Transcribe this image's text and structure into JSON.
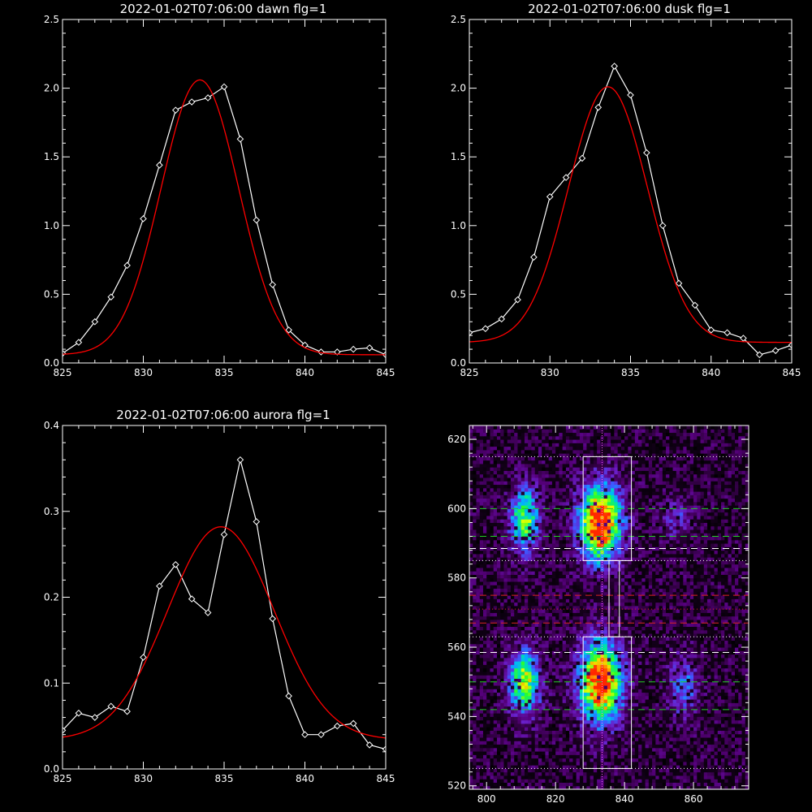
{
  "chart_data": [
    {
      "type": "line",
      "title": "2022-01-02T07:06:00 dawn flg=1",
      "xlim": [
        825,
        845
      ],
      "ylim": [
        0,
        2.5
      ],
      "xticks": [
        "825",
        "830",
        "835",
        "840",
        "845"
      ],
      "yticks": [
        "0.0",
        "0.5",
        "1.0",
        "1.5",
        "2.0",
        "2.5"
      ],
      "series": [
        {
          "color": "#ffffff",
          "marker": "diamond",
          "x": [
            825,
            826,
            827,
            828,
            829,
            830,
            831,
            832,
            833,
            834,
            835,
            836,
            837,
            838,
            839,
            840,
            841,
            842,
            843,
            844,
            845
          ],
          "y": [
            0.07,
            0.15,
            0.3,
            0.48,
            0.71,
            1.05,
            1.44,
            1.84,
            1.9,
            1.93,
            2.01,
            1.63,
            1.04,
            0.57,
            0.24,
            0.13,
            0.08,
            0.08,
            0.1,
            0.11,
            0.06
          ]
        },
        {
          "color": "#ff0000",
          "marker": "none",
          "fit": {
            "amplitude": 2.0,
            "center": 833.5,
            "sigma": 2.4,
            "offset": 0.06
          }
        }
      ]
    },
    {
      "type": "line",
      "title": "2022-01-02T07:06:00 dusk flg=1",
      "xlim": [
        825,
        845
      ],
      "ylim": [
        0,
        2.5
      ],
      "xticks": [
        "825",
        "830",
        "835",
        "840",
        "845"
      ],
      "yticks": [
        "0.0",
        "0.5",
        "1.0",
        "1.5",
        "2.0",
        "2.5"
      ],
      "series": [
        {
          "color": "#ffffff",
          "marker": "diamond",
          "x": [
            825,
            826,
            827,
            828,
            829,
            830,
            831,
            832,
            833,
            834,
            835,
            836,
            837,
            838,
            839,
            840,
            841,
            842,
            843,
            844,
            845
          ],
          "y": [
            0.22,
            0.25,
            0.32,
            0.46,
            0.77,
            1.21,
            1.35,
            1.49,
            1.86,
            2.16,
            1.95,
            1.53,
            1.0,
            0.58,
            0.42,
            0.24,
            0.22,
            0.18,
            0.06,
            0.09,
            0.13
          ]
        },
        {
          "color": "#ff0000",
          "marker": "none",
          "fit": {
            "amplitude": 1.86,
            "center": 833.6,
            "sigma": 2.45,
            "offset": 0.15
          }
        }
      ]
    },
    {
      "type": "line",
      "title": "2022-01-02T07:06:00 aurora flg=1",
      "xlim": [
        825,
        845
      ],
      "ylim": [
        0,
        0.4
      ],
      "xticks": [
        "825",
        "830",
        "835",
        "840",
        "845"
      ],
      "yticks": [
        "0.0",
        "0.1",
        "0.2",
        "0.3",
        "0.4"
      ],
      "series": [
        {
          "color": "#ffffff",
          "marker": "diamond",
          "x": [
            825,
            826,
            827,
            828,
            829,
            830,
            831,
            832,
            833,
            834,
            835,
            836,
            837,
            838,
            839,
            840,
            841,
            842,
            843,
            844,
            845
          ],
          "y": [
            0.045,
            0.065,
            0.06,
            0.073,
            0.067,
            0.13,
            0.213,
            0.238,
            0.198,
            0.182,
            0.273,
            0.36,
            0.288,
            0.175,
            0.085,
            0.04,
            0.04,
            0.05,
            0.053,
            0.028,
            0.023
          ]
        },
        {
          "color": "#ff0000",
          "marker": "none",
          "fit": {
            "amplitude": 0.248,
            "center": 834.8,
            "sigma": 3.3,
            "offset": 0.034
          }
        }
      ]
    },
    {
      "type": "heatmap",
      "title": "",
      "xlim": [
        795,
        876
      ],
      "ylim": [
        519,
        624
      ],
      "xticks": [
        "800",
        "820",
        "840",
        "860"
      ],
      "yticks": [
        "520",
        "540",
        "560",
        "580",
        "600",
        "620"
      ],
      "colormap": [
        "#000000",
        "#2a0038",
        "#55007a",
        "#6a1ec8",
        "#3c5aff",
        "#00b4ff",
        "#00e6a0",
        "#2cff28",
        "#e6ff00",
        "#ffa000",
        "#ff2800"
      ],
      "blobs": [
        {
          "x": 833,
          "y": 596,
          "sx": 4.2,
          "sy": 7.5,
          "amp": 1.0
        },
        {
          "x": 833,
          "y": 550,
          "sx": 4.2,
          "sy": 8.0,
          "amp": 1.0
        },
        {
          "x": 811,
          "y": 597,
          "sx": 2.8,
          "sy": 6.5,
          "amp": 0.62
        },
        {
          "x": 811,
          "y": 550,
          "sx": 3.0,
          "sy": 6.5,
          "amp": 0.68
        },
        {
          "x": 857,
          "y": 549,
          "sx": 2.8,
          "sy": 6.0,
          "amp": 0.32
        },
        {
          "x": 855,
          "y": 597,
          "sx": 3.0,
          "sy": 4.0,
          "amp": 0.2
        }
      ],
      "vertical_line": {
        "x": 833.5,
        "color": "#ff66ff",
        "style": "dotted"
      },
      "boxes": [
        {
          "x0": 828,
          "x1": 842,
          "y0": 585,
          "y1": 615,
          "color": "#ffffff"
        },
        {
          "x0": 828,
          "x1": 842,
          "y0": 525,
          "y1": 563,
          "color": "#ffffff"
        },
        {
          "x0": 835.5,
          "x1": 838.5,
          "y0": 563,
          "y1": 585,
          "color": "#ffffff"
        }
      ],
      "hlines": [
        {
          "y": 615,
          "color": "#ffffff",
          "style": "dotted"
        },
        {
          "y": 600,
          "color": "#22cc22",
          "style": "dashed"
        },
        {
          "y": 592,
          "color": "#22cc22",
          "style": "dashed"
        },
        {
          "y": 588.5,
          "color": "#ffffff",
          "style": "dashed"
        },
        {
          "y": 585,
          "color": "#ffffff",
          "style": "dotted"
        },
        {
          "y": 575,
          "color": "#dd2222",
          "style": "dashed"
        },
        {
          "y": 571,
          "color": "#dd2222",
          "style": "dotted"
        },
        {
          "y": 567,
          "color": "#dd2222",
          "style": "dashed"
        },
        {
          "y": 563,
          "color": "#ffffff",
          "style": "dotted"
        },
        {
          "y": 558.5,
          "color": "#ffffff",
          "style": "dashed"
        },
        {
          "y": 550,
          "color": "#22cc22",
          "style": "dashed"
        },
        {
          "y": 542,
          "color": "#22cc22",
          "style": "dashed"
        },
        {
          "y": 525,
          "color": "#ffffff",
          "style": "dotted"
        }
      ]
    }
  ]
}
